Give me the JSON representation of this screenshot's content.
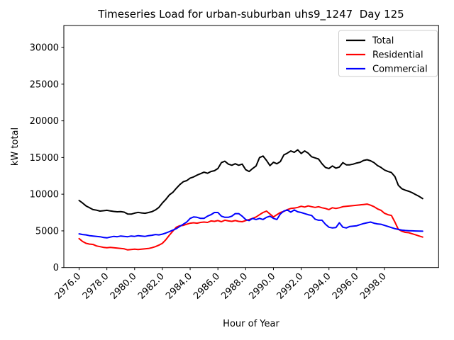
{
  "chart_data": {
    "type": "line",
    "title": "Timeseries Load for urban-suburban uhs9_1247  Day 125",
    "xlabel": "Hour of Year",
    "ylabel": "kW total",
    "xlim": [
      2974.9,
      3001.9
    ],
    "ylim": [
      0,
      33000
    ],
    "grid": false,
    "legend": {
      "position": "upper right",
      "frame": true
    },
    "xticks": {
      "values": [
        2976,
        2978,
        2980,
        2982,
        2984,
        2986,
        2988,
        2990,
        2992,
        2994,
        2996,
        2998
      ],
      "labels": [
        "2976.0",
        "2978.0",
        "2980.0",
        "2982.0",
        "2984.0",
        "2986.0",
        "2988.0",
        "2990.0",
        "2992.0",
        "2994.0",
        "2996.0",
        "2998.0"
      ],
      "rotation": 45
    },
    "yticks": {
      "values": [
        0,
        5000,
        10000,
        15000,
        20000,
        25000,
        30000
      ],
      "labels": [
        "0",
        "5000",
        "10000",
        "15000",
        "20000",
        "25000",
        "30000"
      ]
    },
    "x": [
      2976.0,
      2976.25,
      2976.5,
      2976.75,
      2977.0,
      2977.25,
      2977.5,
      2977.75,
      2978.0,
      2978.25,
      2978.5,
      2978.75,
      2979.0,
      2979.25,
      2979.5,
      2979.75,
      2980.0,
      2980.25,
      2980.5,
      2980.75,
      2981.0,
      2981.25,
      2981.5,
      2981.75,
      2982.0,
      2982.25,
      2982.5,
      2982.75,
      2983.0,
      2983.25,
      2983.5,
      2983.75,
      2984.0,
      2984.25,
      2984.5,
      2984.75,
      2985.0,
      2985.25,
      2985.5,
      2985.75,
      2986.0,
      2986.25,
      2986.5,
      2986.75,
      2987.0,
      2987.25,
      2987.5,
      2987.75,
      2988.0,
      2988.25,
      2988.5,
      2988.75,
      2989.0,
      2989.25,
      2989.5,
      2989.75,
      2990.0,
      2990.25,
      2990.5,
      2990.75,
      2991.0,
      2991.25,
      2991.5,
      2991.75,
      2992.0,
      2992.25,
      2992.5,
      2992.75,
      2993.0,
      2993.25,
      2993.5,
      2993.75,
      2994.0,
      2994.25,
      2994.5,
      2994.75,
      2995.0,
      2995.25,
      2995.5,
      2995.75,
      2996.0,
      2996.25,
      2996.5,
      2996.75,
      2997.0,
      2997.25,
      2997.5,
      2997.75,
      2998.0,
      2998.25,
      2998.5,
      2998.75,
      2999.0,
      2999.25,
      2999.5,
      2999.75,
      3000.0,
      3000.25,
      3000.5,
      3000.75
    ],
    "series": [
      {
        "name": "Total",
        "color": "#000000",
        "values": [
          9150,
          8800,
          8400,
          8150,
          7900,
          7820,
          7700,
          7750,
          7800,
          7720,
          7650,
          7600,
          7620,
          7550,
          7300,
          7280,
          7420,
          7520,
          7450,
          7400,
          7500,
          7620,
          7850,
          8200,
          8800,
          9300,
          9900,
          10250,
          10800,
          11300,
          11700,
          11850,
          12200,
          12350,
          12600,
          12800,
          13000,
          12850,
          13100,
          13200,
          13500,
          14300,
          14500,
          14100,
          13950,
          14150,
          13950,
          14100,
          13350,
          13100,
          13500,
          13850,
          15000,
          15200,
          14600,
          13900,
          14350,
          14150,
          14450,
          15350,
          15600,
          15900,
          15700,
          16050,
          15550,
          15900,
          15600,
          15100,
          14950,
          14800,
          14150,
          13650,
          13500,
          13850,
          13550,
          13700,
          14300,
          14000,
          14000,
          14100,
          14250,
          14350,
          14600,
          14700,
          14550,
          14300,
          13900,
          13650,
          13300,
          13100,
          12950,
          12400,
          11200,
          10750,
          10550,
          10400,
          10200,
          9950,
          9700,
          9400
        ]
      },
      {
        "name": "Residential",
        "color": "#ff0000",
        "values": [
          3950,
          3550,
          3300,
          3200,
          3150,
          2950,
          2850,
          2750,
          2700,
          2750,
          2700,
          2650,
          2600,
          2550,
          2400,
          2450,
          2500,
          2450,
          2500,
          2550,
          2600,
          2700,
          2850,
          3050,
          3300,
          3800,
          4400,
          4950,
          5500,
          5700,
          5750,
          5900,
          6050,
          6100,
          6050,
          6150,
          6200,
          6150,
          6350,
          6300,
          6400,
          6250,
          6450,
          6350,
          6300,
          6400,
          6300,
          6250,
          6400,
          6550,
          6700,
          6900,
          7200,
          7500,
          7700,
          7300,
          6900,
          7200,
          7500,
          7650,
          7900,
          8050,
          8100,
          8200,
          8350,
          8250,
          8400,
          8300,
          8200,
          8300,
          8150,
          8050,
          7900,
          8150,
          8050,
          8150,
          8300,
          8350,
          8400,
          8450,
          8500,
          8550,
          8600,
          8650,
          8500,
          8300,
          8000,
          7800,
          7400,
          7200,
          7100,
          6200,
          5200,
          4950,
          4800,
          4750,
          4600,
          4450,
          4300,
          4150
        ]
      },
      {
        "name": "Commercial",
        "color": "#0000ff",
        "values": [
          4600,
          4500,
          4450,
          4350,
          4300,
          4250,
          4200,
          4100,
          4050,
          4150,
          4250,
          4200,
          4300,
          4250,
          4200,
          4300,
          4250,
          4350,
          4300,
          4250,
          4350,
          4400,
          4500,
          4450,
          4550,
          4700,
          4900,
          5100,
          5300,
          5600,
          5900,
          6200,
          6700,
          6900,
          6850,
          6700,
          6700,
          7000,
          7200,
          7500,
          7500,
          7000,
          6850,
          6850,
          7000,
          7350,
          7350,
          7000,
          6550,
          6400,
          6700,
          6550,
          6700,
          6550,
          6850,
          7000,
          6700,
          6550,
          7300,
          7700,
          7850,
          7550,
          7850,
          7600,
          7500,
          7350,
          7200,
          7100,
          6600,
          6450,
          6450,
          5900,
          5500,
          5400,
          5450,
          6100,
          5500,
          5400,
          5600,
          5650,
          5700,
          5850,
          6000,
          6100,
          6200,
          6050,
          5950,
          5900,
          5750,
          5600,
          5450,
          5300,
          5200,
          5100,
          5050,
          5020,
          5000,
          4980,
          4960,
          4950
        ]
      }
    ]
  }
}
